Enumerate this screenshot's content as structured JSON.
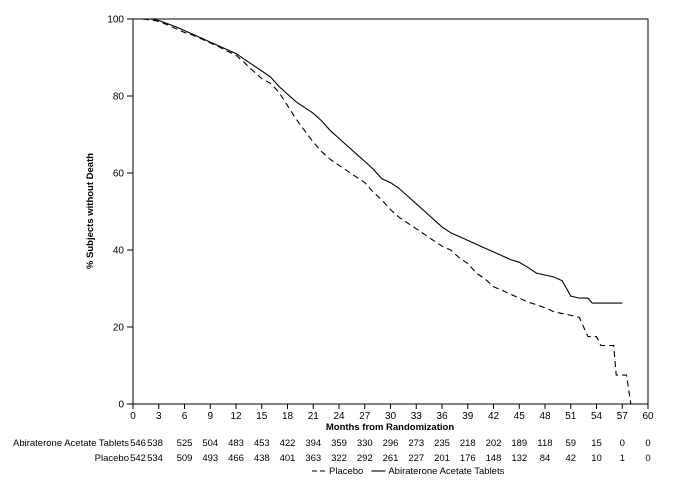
{
  "chart_data": {
    "type": "line",
    "title": "",
    "xlabel": "Months from Randomization",
    "ylabel": "% Subjects without Death",
    "xlim": [
      0,
      60
    ],
    "ylim": [
      0,
      100
    ],
    "xticks": [
      0,
      3,
      6,
      9,
      12,
      15,
      18,
      21,
      24,
      27,
      30,
      33,
      36,
      39,
      42,
      45,
      48,
      51,
      54,
      57,
      60
    ],
    "yticks": [
      0,
      20,
      40,
      60,
      80,
      100
    ],
    "grid": false,
    "legend_position": "bottom",
    "series": [
      {
        "name": "Placebo",
        "dash": "dashed",
        "points": [
          [
            0,
            100
          ],
          [
            1,
            100
          ],
          [
            2,
            99.8
          ],
          [
            3,
            99.4
          ],
          [
            4,
            98.5
          ],
          [
            5,
            97.5
          ],
          [
            6,
            96.5
          ],
          [
            7,
            95.8
          ],
          [
            8,
            94.8
          ],
          [
            9,
            93.8
          ],
          [
            10,
            92.8
          ],
          [
            11,
            91.6
          ],
          [
            12,
            90.6
          ],
          [
            13,
            88.6
          ],
          [
            14,
            86.5
          ],
          [
            15,
            84.5
          ],
          [
            16,
            83.3
          ],
          [
            17,
            81
          ],
          [
            18,
            77.5
          ],
          [
            19,
            74
          ],
          [
            20,
            71
          ],
          [
            21,
            68
          ],
          [
            22,
            65.5
          ],
          [
            23,
            63.5
          ],
          [
            24,
            62
          ],
          [
            25,
            60.5
          ],
          [
            26,
            59
          ],
          [
            27,
            57.5
          ],
          [
            28,
            55
          ],
          [
            29,
            53
          ],
          [
            30,
            50.5
          ],
          [
            31,
            48.5
          ],
          [
            32,
            47
          ],
          [
            33,
            45.5
          ],
          [
            34,
            44
          ],
          [
            35,
            42.5
          ],
          [
            36,
            41
          ],
          [
            37,
            40
          ],
          [
            38,
            38
          ],
          [
            39,
            36.5
          ],
          [
            40,
            34
          ],
          [
            41,
            32.5
          ],
          [
            42,
            30.5
          ],
          [
            43,
            29.5
          ],
          [
            44,
            28.5
          ],
          [
            45,
            27.5
          ],
          [
            46,
            26.5
          ],
          [
            47,
            25.8
          ],
          [
            48,
            25
          ],
          [
            49,
            24
          ],
          [
            50,
            23.5
          ],
          [
            51,
            23
          ],
          [
            52,
            22.5
          ],
          [
            53,
            17.5
          ],
          [
            54,
            17.5
          ],
          [
            54.5,
            15.2
          ],
          [
            56,
            15.2
          ],
          [
            56.3,
            7.5
          ],
          [
            57.5,
            7.5
          ],
          [
            58,
            0
          ]
        ]
      },
      {
        "name": "Abiraterone Acetate Tablets",
        "dash": "solid",
        "points": [
          [
            0,
            100
          ],
          [
            1,
            100
          ],
          [
            2,
            100
          ],
          [
            3,
            99.6
          ],
          [
            4,
            98.8
          ],
          [
            5,
            98
          ],
          [
            6,
            97
          ],
          [
            7,
            96
          ],
          [
            8,
            95
          ],
          [
            9,
            94
          ],
          [
            10,
            93
          ],
          [
            11,
            92
          ],
          [
            12,
            91
          ],
          [
            13,
            89.5
          ],
          [
            14,
            88
          ],
          [
            15,
            86.5
          ],
          [
            16,
            85
          ],
          [
            17,
            82.5
          ],
          [
            18,
            80.5
          ],
          [
            19,
            78.5
          ],
          [
            20,
            77
          ],
          [
            21,
            75.5
          ],
          [
            22,
            73.5
          ],
          [
            23,
            71
          ],
          [
            24,
            69
          ],
          [
            25,
            67
          ],
          [
            26,
            65
          ],
          [
            27,
            63
          ],
          [
            28,
            61
          ],
          [
            29,
            58.5
          ],
          [
            30,
            57.5
          ],
          [
            31,
            56
          ],
          [
            32,
            54
          ],
          [
            33,
            52
          ],
          [
            34,
            50
          ],
          [
            35,
            48
          ],
          [
            36,
            46
          ],
          [
            37,
            44.5
          ],
          [
            38,
            43.5
          ],
          [
            39,
            42.5
          ],
          [
            40,
            41.5
          ],
          [
            41,
            40.5
          ],
          [
            42,
            39.5
          ],
          [
            43,
            38.5
          ],
          [
            44,
            37.5
          ],
          [
            45,
            36.8
          ],
          [
            46,
            35.5
          ],
          [
            47,
            34
          ],
          [
            48,
            33.5
          ],
          [
            49,
            33
          ],
          [
            50,
            32
          ],
          [
            51,
            28
          ],
          [
            52,
            27.5
          ],
          [
            53,
            27.5
          ],
          [
            53.5,
            26.2
          ],
          [
            57,
            26.2
          ]
        ]
      }
    ],
    "risk_table": {
      "times": [
        0,
        3,
        6,
        9,
        12,
        15,
        18,
        21,
        24,
        27,
        30,
        33,
        36,
        39,
        42,
        45,
        48,
        51,
        54,
        57,
        60
      ],
      "rows": [
        {
          "label": "Abiraterone Acetate Tablets",
          "values": [
            "546",
            "538",
            "525",
            "504",
            "483",
            "453",
            "422",
            "394",
            "359",
            "330",
            "296",
            "273",
            "235",
            "218",
            "202",
            "189",
            "118",
            "59",
            "15",
            "0",
            "0"
          ]
        },
        {
          "label": "Placebo",
          "values": [
            "542",
            "534",
            "509",
            "493",
            "466",
            "438",
            "401",
            "363",
            "322",
            "292",
            "261",
            "227",
            "201",
            "176",
            "148",
            "132",
            "84",
            "42",
            "10",
            "1",
            "0"
          ]
        }
      ]
    },
    "legend": [
      {
        "label": "Placebo",
        "dash": "dashed"
      },
      {
        "label": "Abiraterone Acetate Tablets",
        "dash": "solid"
      }
    ]
  }
}
